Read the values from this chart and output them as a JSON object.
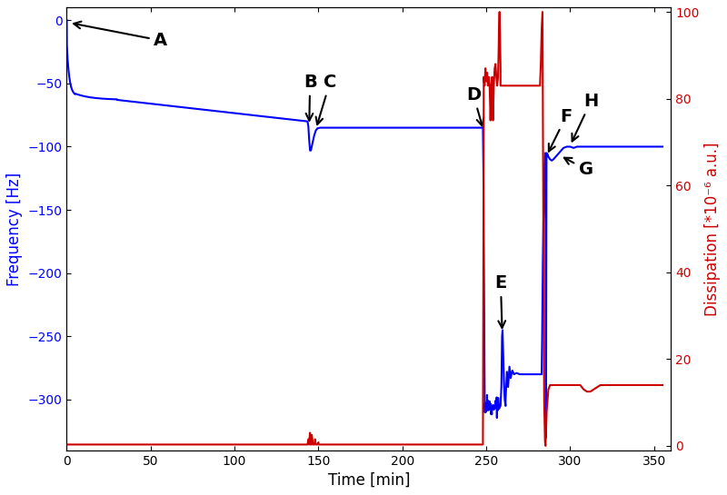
{
  "xlabel": "Time [min]",
  "ylabel_left": "Frequency [Hz]",
  "ylabel_right": "Dissipation [*10⁻⁶ a.u.]",
  "xlim": [
    0,
    360
  ],
  "ylim_freq": [
    -340,
    10
  ],
  "ylim_diss": [
    -1,
    101
  ],
  "freq_color": "#0000FF",
  "diss_color": "#CC0000",
  "background_color": "#FFFFFF",
  "freq_yticks": [
    0,
    -50,
    -100,
    -150,
    -200,
    -250,
    -300
  ],
  "diss_yticks": [
    0,
    20,
    40,
    60,
    80,
    100
  ],
  "xticks": [
    0,
    50,
    100,
    150,
    200,
    250,
    300,
    350
  ]
}
